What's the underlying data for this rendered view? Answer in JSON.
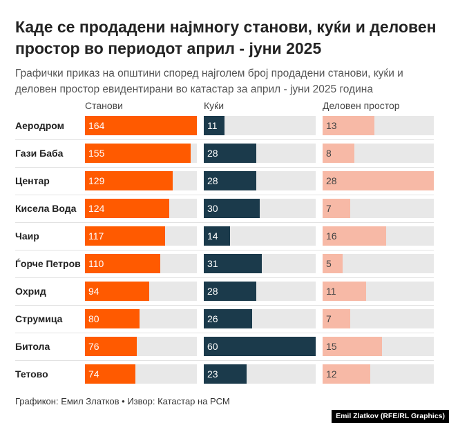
{
  "header": {
    "title": "Каде се продадени најмногу станови, куќи и деловен простор во периодот април - јуни 2025",
    "subtitle": "Графички приказ на општини според најголем број продадени станови, куќи и деловен простор евидентирани во катастар за април - јуни 2025 година"
  },
  "chart_data": {
    "type": "bar",
    "categories": [
      "Аеродром",
      "Гази Баба",
      "Центар",
      "Кисела Вода",
      "Чаир",
      "Ѓорче Петров",
      "Охрид",
      "Струмица",
      "Битола",
      "Тетово"
    ],
    "series": [
      {
        "name": "Станови",
        "values": [
          164,
          155,
          129,
          124,
          117,
          110,
          94,
          80,
          76,
          74
        ],
        "color": "#ff5a00",
        "text_color": "#ffffff"
      },
      {
        "name": "Куќи",
        "values": [
          11,
          28,
          28,
          30,
          14,
          31,
          28,
          26,
          60,
          23
        ],
        "color": "#1b3a4b",
        "text_color": "#ffffff"
      },
      {
        "name": "Деловен простор",
        "values": [
          13,
          8,
          28,
          7,
          16,
          5,
          11,
          7,
          15,
          12
        ],
        "color": "#f7b9a6",
        "text_color": "#444444"
      }
    ],
    "track_color": "#e8e8e8"
  },
  "footer": {
    "source": "Графикон: Емил Златков • Извор: Катастар на РСМ",
    "credit": "Emil Zlatkov (RFE/RL Graphics)"
  }
}
